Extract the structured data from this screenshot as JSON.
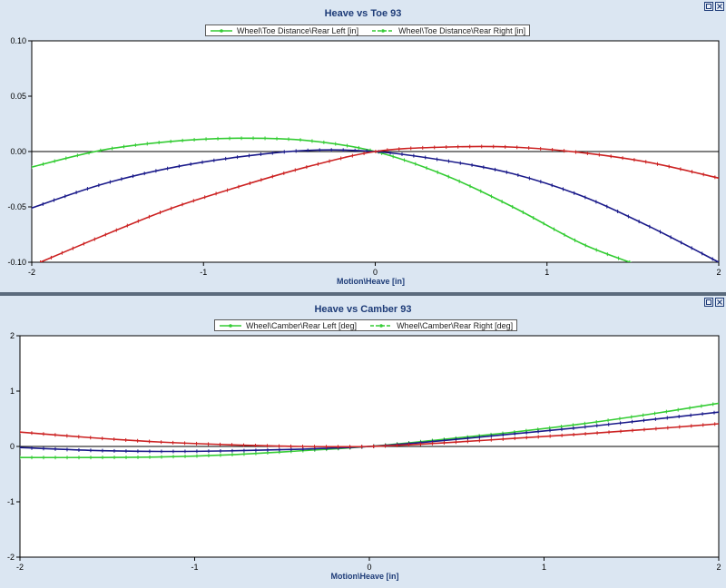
{
  "chart_data": [
    {
      "type": "line",
      "title": "Heave vs Toe 93",
      "xlabel": "Motion\\Heave [in]",
      "ylabel": "",
      "xlim": [
        -2,
        2
      ],
      "ylim": [
        -0.1,
        0.1
      ],
      "xticks": [
        "-2",
        "-1",
        "0",
        "1",
        "2"
      ],
      "yticks": [
        "0.10",
        "0.05",
        "0.00",
        "-0.05",
        "-0.10"
      ],
      "grid": false,
      "legend_position": "top-center",
      "legend": [
        {
          "label": "Wheel\\Toe Distance\\Rear Left [in]",
          "color": "#33cc33"
        },
        {
          "label": "Wheel\\Toe Distance\\Rear Right [in]",
          "color": "#33cc33"
        }
      ],
      "series": [
        {
          "color": "#33cc33",
          "x": [
            -2,
            -1.6,
            -1.2,
            -0.8,
            -0.4,
            0,
            0.4,
            0.8,
            1.2,
            1.5
          ],
          "y": [
            -0.014,
            0.001,
            0.009,
            0.012,
            0.01,
            0.0,
            -0.021,
            -0.05,
            -0.083,
            -0.101
          ]
        },
        {
          "color": "#1a1a8a",
          "x": [
            -2,
            -1.6,
            -1.2,
            -0.8,
            -0.4,
            0,
            0.4,
            0.8,
            1.2,
            1.6,
            2.0
          ],
          "y": [
            -0.051,
            -0.03,
            -0.015,
            -0.005,
            0.001,
            0.0,
            -0.008,
            -0.02,
            -0.04,
            -0.068,
            -0.1
          ]
        },
        {
          "color": "#cc2222",
          "x": [
            -1.95,
            -1.6,
            -1.2,
            -0.8,
            -0.4,
            0,
            0.4,
            0.8,
            1.2,
            1.6,
            2.0
          ],
          "y": [
            -0.1,
            -0.077,
            -0.052,
            -0.032,
            -0.014,
            0.0,
            0.004,
            0.004,
            -0.001,
            -0.01,
            -0.024
          ]
        }
      ]
    },
    {
      "type": "line",
      "title": "Heave vs Camber 93",
      "xlabel": "Motion\\Heave [in]",
      "ylabel": "",
      "xlim": [
        -2,
        2
      ],
      "ylim": [
        -2,
        2
      ],
      "xticks": [
        "-2",
        "-1",
        "0",
        "1",
        "2"
      ],
      "yticks": [
        "2",
        "1",
        "0",
        "-1",
        "-2"
      ],
      "grid": false,
      "legend_position": "top-center",
      "legend": [
        {
          "label": "Wheel\\Camber\\Rear Left [deg]",
          "color": "#33cc33"
        },
        {
          "label": "Wheel\\Camber\\Rear Right [deg]",
          "color": "#33cc33"
        }
      ],
      "series": [
        {
          "color": "#33cc33",
          "x": [
            -2,
            -1.6,
            -1.2,
            -0.8,
            -0.4,
            0,
            0.4,
            0.8,
            1.2,
            1.6,
            2.0
          ],
          "y": [
            -0.2,
            -0.2,
            -0.19,
            -0.15,
            -0.08,
            0.0,
            0.12,
            0.25,
            0.4,
            0.58,
            0.78
          ]
        },
        {
          "color": "#1a1a8a",
          "x": [
            -2,
            -1.6,
            -1.2,
            -0.8,
            -0.4,
            0,
            0.4,
            0.8,
            1.2,
            1.6,
            2.0
          ],
          "y": [
            -0.02,
            -0.07,
            -0.09,
            -0.08,
            -0.05,
            0.0,
            0.1,
            0.22,
            0.34,
            0.48,
            0.62
          ]
        },
        {
          "color": "#cc2222",
          "x": [
            -2,
            -1.6,
            -1.2,
            -0.8,
            -0.4,
            0,
            0.4,
            0.8,
            1.2,
            1.6,
            2.0
          ],
          "y": [
            0.26,
            0.16,
            0.08,
            0.03,
            0.0,
            0.0,
            0.06,
            0.14,
            0.22,
            0.31,
            0.41
          ]
        }
      ]
    }
  ]
}
